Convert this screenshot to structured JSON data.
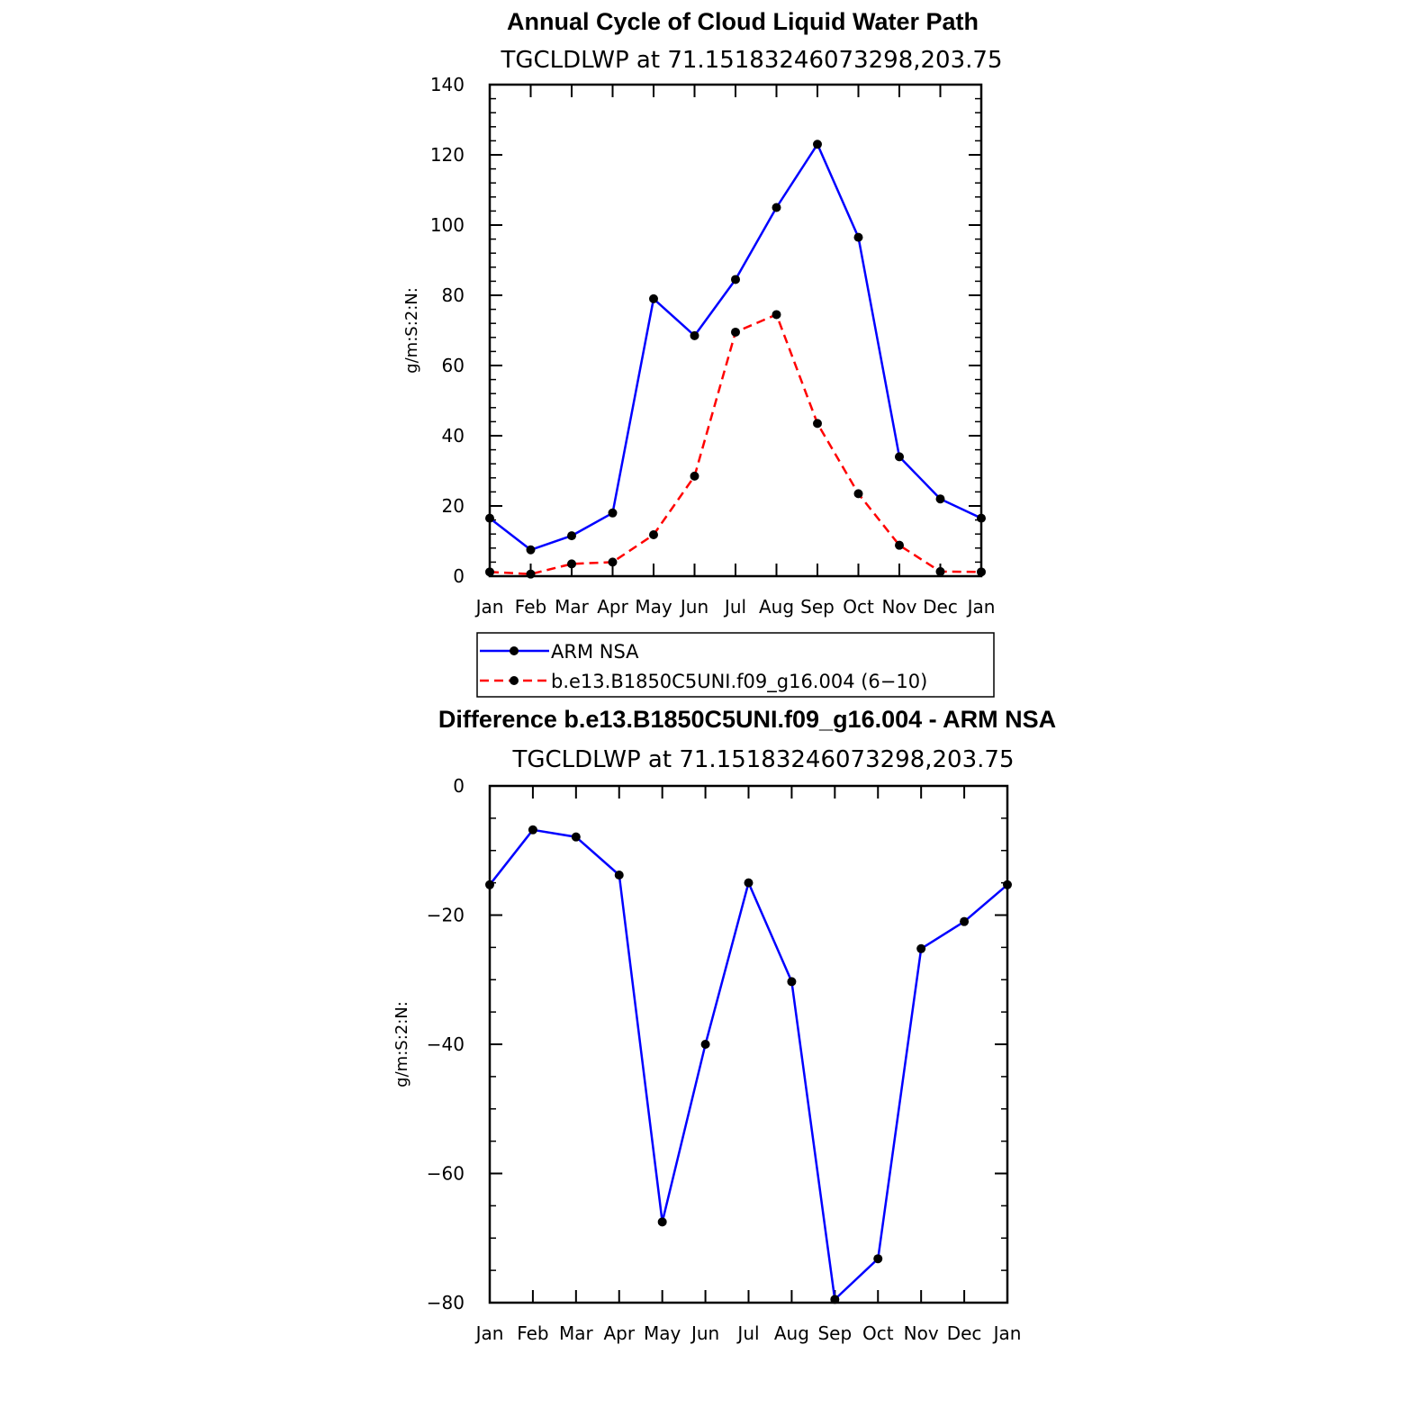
{
  "chart_data": [
    {
      "type": "line",
      "title": "Annual Cycle of Cloud Liquid Water Path",
      "subtitle": "TGCLDLWP at 71.15183246073298,203.75",
      "ylabel": "g/m:S:2:N:",
      "ylim": [
        0,
        140
      ],
      "yticks": [
        "0",
        "20",
        "40",
        "60",
        "80",
        "100",
        "120",
        "140"
      ],
      "categories": [
        "Jan",
        "Feb",
        "Mar",
        "Apr",
        "May",
        "Jun",
        "Jul",
        "Aug",
        "Sep",
        "Oct",
        "Nov",
        "Dec",
        "Jan"
      ],
      "legend_position": "below",
      "series": [
        {
          "name": "ARM NSA",
          "color": "#0000ff",
          "style": "solid",
          "values": [
            16.5,
            7.5,
            11.5,
            18,
            79,
            68.5,
            84.5,
            105,
            123,
            96.5,
            34,
            22,
            16.5
          ]
        },
        {
          "name": "b.e13.B1850C5UNI.f09_g16.004 (6−10)",
          "color": "#ff0000",
          "style": "dashed",
          "values": [
            1.2,
            0.6,
            3.5,
            4.0,
            11.8,
            28.5,
            69.5,
            74.5,
            43.5,
            23.5,
            8.8,
            1.3,
            1.2
          ]
        }
      ]
    },
    {
      "type": "line",
      "title": "Difference b.e13.B1850C5UNI.f09_g16.004 - ARM NSA",
      "subtitle": "TGCLDLWP at 71.15183246073298,203.75",
      "ylabel": "g/m:S:2:N:",
      "ylim": [
        -80,
        0
      ],
      "yticks": [
        "−80",
        "−60",
        "−40",
        "−20",
        "0"
      ],
      "categories": [
        "Jan",
        "Feb",
        "Mar",
        "Apr",
        "May",
        "Jun",
        "Jul",
        "Aug",
        "Sep",
        "Oct",
        "Nov",
        "Dec",
        "Jan"
      ],
      "series": [
        {
          "color": "#0000ff",
          "style": "solid",
          "values": [
            -15.3,
            -6.8,
            -7.9,
            -13.8,
            -67.5,
            -40,
            -15,
            -30.3,
            -79.5,
            -73.2,
            -25.2,
            -21,
            -15.3
          ]
        }
      ]
    }
  ]
}
